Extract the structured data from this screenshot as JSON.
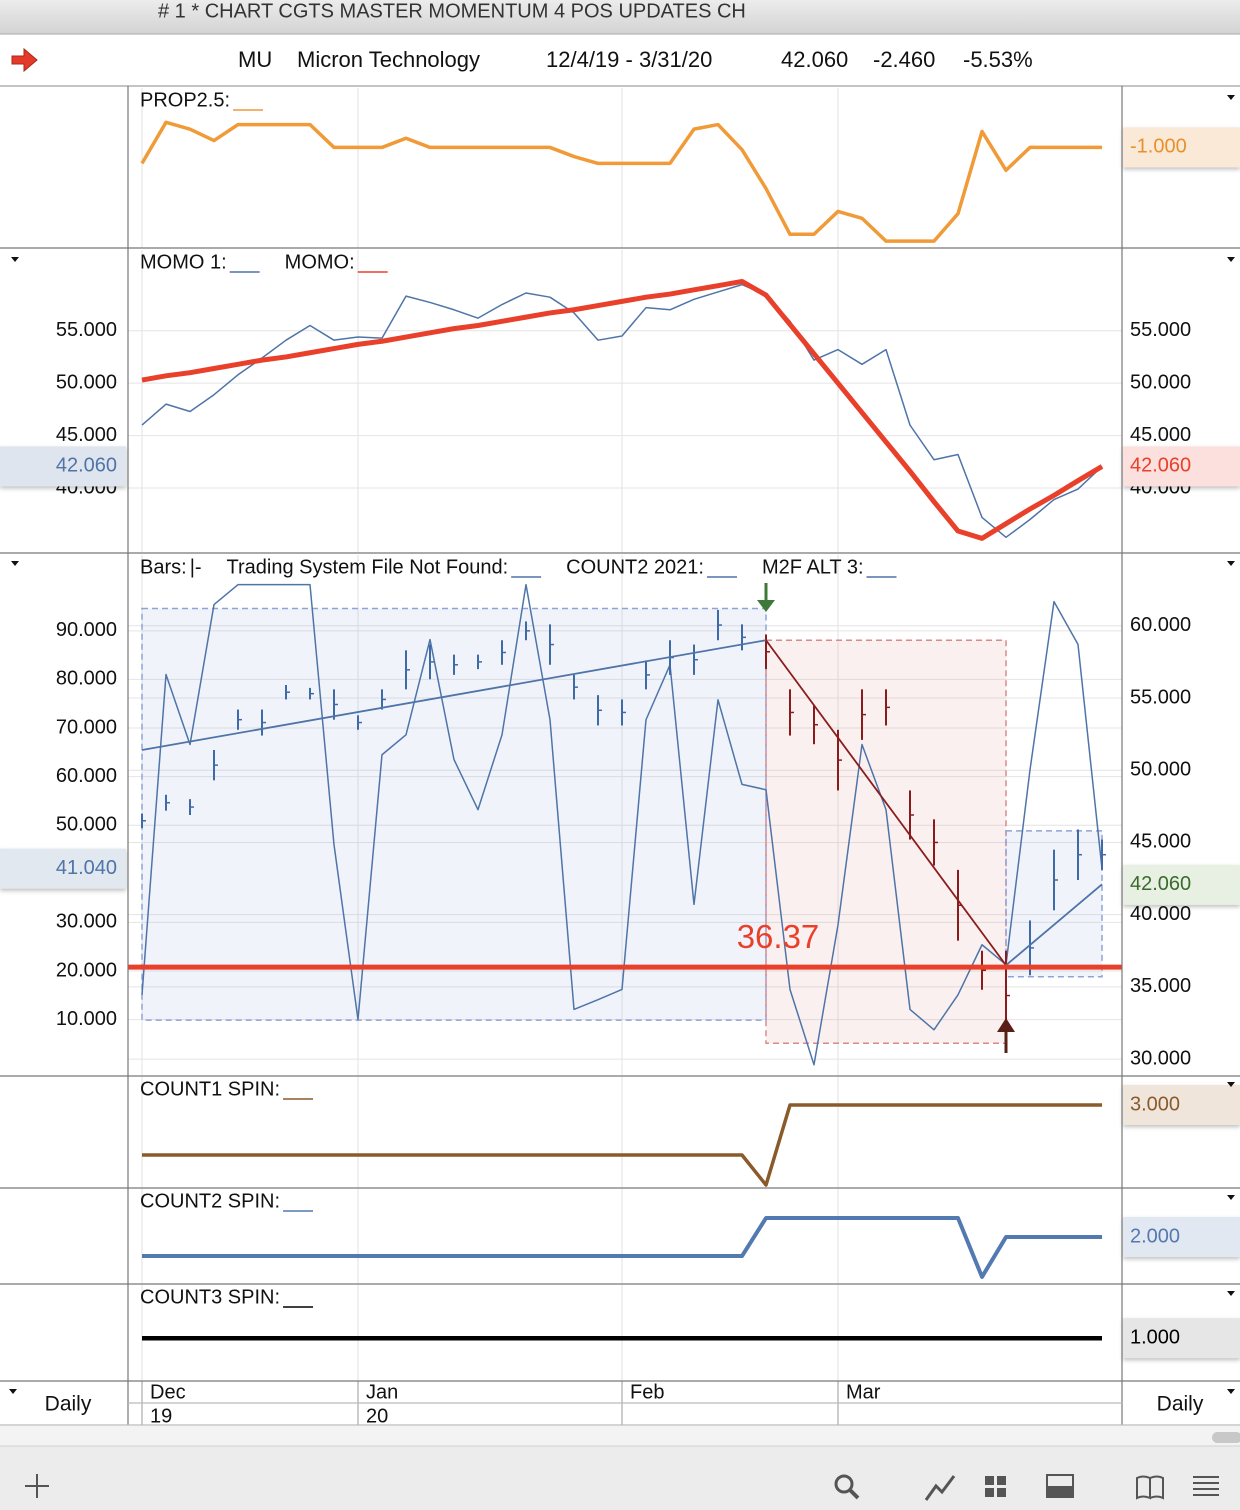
{
  "window": {
    "title": "# 1 * CHART CGTS MASTER MOMENTUM 4 POS UPDATES CH"
  },
  "header": {
    "symbol": "MU",
    "name": "Micron Technology",
    "range": "12/4/19 - 3/31/20",
    "price": "42.060",
    "change": "-2.460",
    "percent": "-5.53%"
  },
  "x_axis": {
    "categories": [
      "Dec",
      null,
      null,
      null,
      null,
      null,
      null,
      null,
      null,
      "Jan",
      null,
      null,
      null,
      null,
      null,
      null,
      null,
      null,
      null,
      null,
      "Feb",
      null,
      null,
      null,
      null,
      null,
      null,
      null,
      null,
      "Mar",
      null,
      null,
      null,
      null,
      null,
      null,
      null,
      null,
      null,
      null,
      null
    ],
    "category_years": [
      "19",
      null,
      null,
      null,
      null,
      null,
      null,
      null,
      null,
      "20",
      null,
      null,
      null,
      null,
      null,
      null,
      null,
      null,
      null,
      null,
      null,
      null,
      null,
      null,
      null,
      null,
      null,
      null,
      null,
      null,
      null,
      null,
      null,
      null,
      null,
      null,
      null,
      null,
      null,
      null,
      null
    ],
    "period": "Daily"
  },
  "chart_data": [
    {
      "type": "line",
      "ylim": [
        -5.4,
        1.6
      ],
      "series": [
        {
          "name": "PROP2.5:",
          "color": "#f09a38",
          "width": 3.5,
          "values": [
            -1.7,
            0.1,
            -0.2,
            -0.7,
            0,
            0,
            0,
            0,
            -1,
            -1,
            -1,
            -0.6,
            -1,
            -1,
            -1,
            -1,
            -1,
            -1,
            -1.4,
            -1.7,
            -1.7,
            -1.7,
            -1.7,
            -0.2,
            0,
            -1.1,
            -2.8,
            -4.8,
            -4.8,
            -3.8,
            -4.1,
            -5.1,
            -5.1,
            -5.1,
            -3.9,
            -0.3,
            -2,
            -1,
            -1,
            -1,
            -1
          ]
        }
      ],
      "tags": [
        {
          "value": -1,
          "label": "-1.000",
          "side": "right",
          "color": "#e8902a",
          "background": "#fbe9d8"
        }
      ]
    },
    {
      "type": "line",
      "ylim": [
        33.9,
        62.7
      ],
      "grid": true,
      "ticks_right": true,
      "yticks": [
        {
          "value": 40,
          "label": "40.000"
        },
        {
          "value": 45,
          "label": "45.000"
        },
        {
          "value": 50,
          "label": "50.000"
        },
        {
          "value": 55,
          "label": "55.000"
        }
      ],
      "series": [
        {
          "name": "MOMO 1:",
          "color": "#4e74a8",
          "width": 1.5,
          "values": [
            46.0,
            48.0,
            47.3,
            48.9,
            50.8,
            52.4,
            54.1,
            55.5,
            54.1,
            54.4,
            54.3,
            58.3,
            57.7,
            57.0,
            56.2,
            57.5,
            58.6,
            58.2,
            56.7,
            54.1,
            54.5,
            57.2,
            57.0,
            58.0,
            58.7,
            59.4,
            58.4,
            55.9,
            52.2,
            53.2,
            51.8,
            53.2,
            46.0,
            42.7,
            43.2,
            37.2,
            35.3,
            37.0,
            38.9,
            39.9,
            42.06
          ]
        },
        {
          "name": "MOMO:",
          "color": "#e8402a",
          "width": 5,
          "values": [
            50.3,
            50.7,
            51.0,
            51.4,
            51.8,
            52.2,
            52.5,
            52.9,
            53.3,
            53.7,
            54.0,
            54.4,
            54.8,
            55.2,
            55.5,
            55.9,
            56.3,
            56.7,
            57.0,
            57.4,
            57.8,
            58.2,
            58.5,
            58.9,
            59.3,
            59.7,
            58.4,
            55.6,
            52.8,
            50.0,
            47.2,
            44.4,
            41.6,
            38.7,
            35.9,
            35.2,
            36.6,
            38.0,
            39.3,
            40.7,
            42.06
          ]
        }
      ],
      "tags": [
        {
          "value": 42.06,
          "label": "42.060",
          "side": "left",
          "color": "#4e74a8",
          "background": "#dfe5ee"
        },
        {
          "value": 42.06,
          "label": "42.060",
          "side": "right",
          "color": "#e8402a",
          "background": "#fbe0de"
        }
      ]
    },
    {
      "type": "ohlc",
      "ylim": [
        -1.4,
        105.6
      ],
      "y2lim": [
        28.9,
        64.9
      ],
      "grid": true,
      "yticks": [
        {
          "value": 10,
          "label": "10.000"
        },
        {
          "value": 20,
          "label": "20.000"
        },
        {
          "value": 30,
          "label": "30.000"
        },
        {
          "value": 50,
          "label": "50.000"
        },
        {
          "value": 60,
          "label": "60.000"
        },
        {
          "value": 70,
          "label": "70.000"
        },
        {
          "value": 80,
          "label": "80.000"
        },
        {
          "value": 90,
          "label": "90.000"
        }
      ],
      "y2ticks": [
        {
          "value": 30,
          "label": "30.000"
        },
        {
          "value": 35,
          "label": "35.000"
        },
        {
          "value": 40,
          "label": "40.000"
        },
        {
          "value": 45,
          "label": "45.000"
        },
        {
          "value": 50,
          "label": "50.000"
        },
        {
          "value": 55,
          "label": "55.000"
        },
        {
          "value": 60,
          "label": "60.000"
        }
      ],
      "legend": [
        {
          "name": "Bars:",
          "symbol": "|-"
        },
        {
          "name": "Trading System File Not Found:",
          "color": "#4e74a8"
        },
        {
          "name": "COUNT2 2021:",
          "color": "#4e74a8"
        },
        {
          "name": "M2F ALT 3:",
          "color": "#4e74a8"
        }
      ],
      "series": [
        {
          "color": "#4e74a8",
          "width": 1.5,
          "values": [
            15.1,
            81.0,
            66.6,
            95.4,
            99.5,
            99.5,
            99.5,
            99.5,
            46.0,
            10.0,
            64.5,
            68.6,
            88.2,
            63.5,
            53.2,
            68.6,
            99.5,
            71.7,
            12.1,
            14.1,
            16.2,
            71.7,
            83.0,
            33.7,
            75.8,
            58.4,
            57.3,
            16.2,
            0.7,
            29.5,
            66.6,
            53.2,
            12.1,
            7.9,
            15.1,
            25.4,
            21.3,
            61.4,
            96.0,
            87.2,
            41.04
          ]
        }
      ],
      "bars": {
        "color": "#3f6aa8",
        "high": [
          47.0,
          48.3,
          48.0,
          51.4,
          54.2,
          54.2,
          55.9,
          55.7,
          55.6,
          53.8,
          55.6,
          58.3,
          58.7,
          58.0,
          58.0,
          59.0,
          60.3,
          60.1,
          56.6,
          55.2,
          54.9,
          57.6,
          59.0,
          58.7,
          61.1,
          60.1,
          59.4,
          55.6,
          54.5,
          52.8,
          55.6,
          55.6,
          48.6,
          46.6,
          43.1,
          37.5,
          37.5,
          39.6,
          44.5,
          45.9,
          45.2
        ],
        "low": [
          46.0,
          47.2,
          46.9,
          49.3,
          52.8,
          52.4,
          54.9,
          54.9,
          53.5,
          52.8,
          54.2,
          55.6,
          56.3,
          56.6,
          57.0,
          57.3,
          59.0,
          57.3,
          54.9,
          53.1,
          53.1,
          55.6,
          56.6,
          56.6,
          59.0,
          58.3,
          57.0,
          52.4,
          51.8,
          48.6,
          52.1,
          53.1,
          45.2,
          43.4,
          38.2,
          34.8,
          31.3,
          35.8,
          40.3,
          42.4,
          43.1
        ]
      },
      "boxes": [
        {
          "start": 0,
          "end": 26,
          "top": 61.2,
          "bottom": 32.7,
          "color": "#8fa3d6"
        },
        {
          "start": 26,
          "end": 36,
          "top": 59.0,
          "bottom": 31.1,
          "color": "#d98a8a",
          "bar_color": "#8b1c1c"
        },
        {
          "start": 36,
          "end": 40,
          "top": 45.8,
          "bottom": 35.7,
          "color": "#8fa3d6"
        }
      ],
      "trend_lines": [
        {
          "x": [
            0,
            26
          ],
          "values": [
            51.4,
            59.0
          ],
          "color": "#4e74a8"
        },
        {
          "x": [
            26,
            36
          ],
          "values": [
            59.0,
            36.5
          ],
          "color": "#8b1c1c"
        },
        {
          "x": [
            36,
            40
          ],
          "values": [
            36.5,
            42.1
          ],
          "color": "#4e74a8"
        }
      ],
      "level": 36.37,
      "level_color": "#e8402a",
      "tags": [
        {
          "value": 41.04,
          "label": "41.040",
          "side": "left",
          "color": "#4e74a8",
          "background": "#e2e8f0"
        },
        {
          "value": 42.06,
          "label": "42.060",
          "side": "right",
          "axis": "y2",
          "color": "#3a6b2a",
          "background": "#e8efe3"
        }
      ]
    },
    {
      "type": "line",
      "ylim": [
        -0.28,
        4.12
      ],
      "series": [
        {
          "name": "COUNT1 SPIN:",
          "color": "#8b5a2b",
          "width": 3.5,
          "values": [
            1,
            1,
            1,
            1,
            1,
            1,
            1,
            1,
            1,
            1,
            1,
            1,
            1,
            1,
            1,
            1,
            1,
            1,
            1,
            1,
            1,
            1,
            1,
            1,
            1,
            1,
            -0.2,
            3,
            3,
            3,
            3,
            3,
            3,
            3,
            3,
            3,
            3,
            3,
            3,
            3,
            3
          ]
        }
      ],
      "tags": [
        {
          "value": 3,
          "label": "3.000",
          "side": "right",
          "color": "#8b5a2b",
          "background": "#efe5db"
        }
      ]
    },
    {
      "type": "line",
      "ylim": [
        -0.42,
        4.53
      ],
      "series": [
        {
          "name": "COUNT2 SPIN:",
          "color": "#5279b0",
          "width": 4,
          "values": [
            1,
            1,
            1,
            1,
            1,
            1,
            1,
            1,
            1,
            1,
            1,
            1,
            1,
            1,
            1,
            1,
            1,
            1,
            1,
            1,
            1,
            1,
            1,
            1,
            1,
            1,
            3,
            3,
            3,
            3,
            3,
            3,
            3,
            3,
            3,
            -0.1,
            2,
            2,
            2,
            2,
            2
          ]
        }
      ],
      "tags": [
        {
          "value": 2,
          "label": "2.000",
          "side": "right",
          "color": "#5279b0",
          "background": "#e2e8f2"
        }
      ]
    },
    {
      "type": "line",
      "ylim": [
        -1.2,
        3.8
      ],
      "series": [
        {
          "name": "COUNT3 SPIN:",
          "color": "#000000",
          "width": 4.5,
          "values": [
            1,
            1,
            1,
            1,
            1,
            1,
            1,
            1,
            1,
            1,
            1,
            1,
            1,
            1,
            1,
            1,
            1,
            1,
            1,
            1,
            1,
            1,
            1,
            1,
            1,
            1,
            1,
            1,
            1,
            1,
            1,
            1,
            1,
            1,
            1,
            1,
            1,
            1,
            1,
            1,
            1
          ]
        }
      ],
      "tags": [
        {
          "value": 1,
          "label": "1.000",
          "side": "right",
          "color": "#000000",
          "background": "#e6e6e6"
        }
      ]
    }
  ]
}
